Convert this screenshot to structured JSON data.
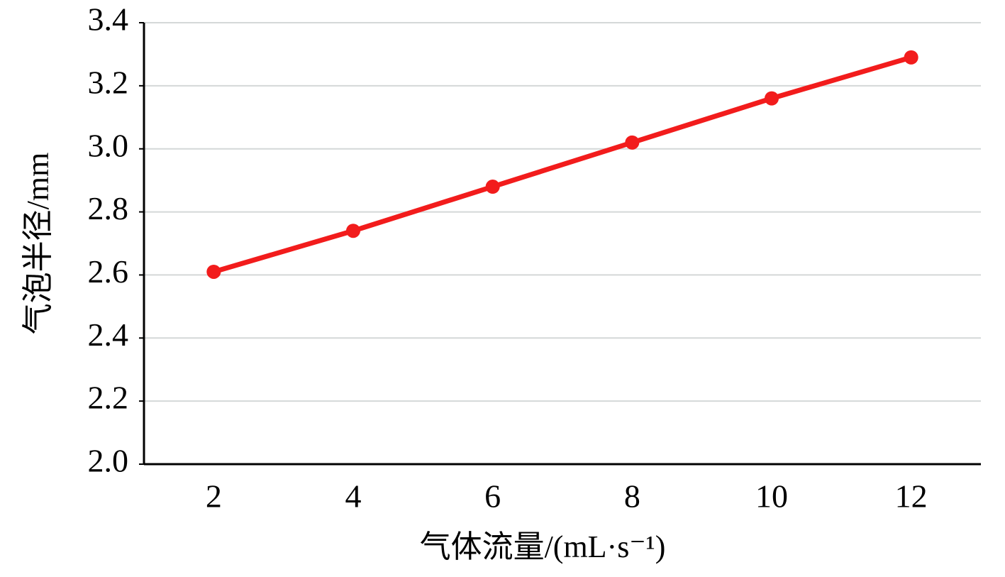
{
  "chart_data": {
    "type": "line",
    "x_label": "气体流量/(mL·s⁻¹)",
    "y_label": "气泡半径/mm",
    "categories": [
      "2",
      "4",
      "6",
      "8",
      "10",
      "12"
    ],
    "series": [
      {
        "name": "气泡半径",
        "color": "#f21c1c",
        "values": [
          2.61,
          2.74,
          2.88,
          3.02,
          3.16,
          3.29
        ]
      }
    ],
    "ylim": [
      2.0,
      3.4
    ],
    "yticks": [
      {
        "value": 2.0,
        "label": "2.0"
      },
      2.2,
      2.4,
      2.6,
      2.8,
      {
        "value": 3.0,
        "label": "3.0"
      },
      3.2,
      3.4
    ],
    "grid": true
  }
}
